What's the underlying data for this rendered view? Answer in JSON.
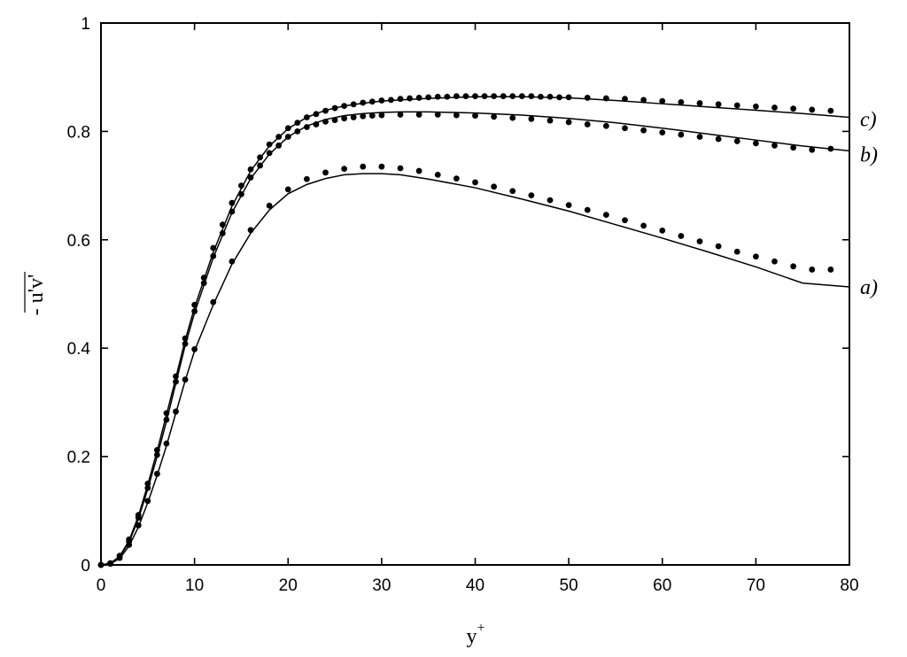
{
  "chart_data": {
    "type": "line",
    "title": "",
    "xlabel": "y",
    "xlabel_superscript": "+",
    "ylabel": "- u'v'",
    "xlim": [
      0,
      80
    ],
    "ylim": [
      0,
      1
    ],
    "xticks": [
      0,
      10,
      20,
      30,
      40,
      50,
      60,
      70,
      80
    ],
    "yticks": [
      0,
      0.2,
      0.4,
      0.6,
      0.8,
      1
    ],
    "ytick_labels": [
      "0",
      "0.2",
      "0.4",
      "0.6",
      "0.8",
      "1"
    ],
    "grid": false,
    "series": [
      {
        "name": "a)",
        "line": {
          "x": [
            0,
            1,
            2,
            3,
            4,
            5,
            6,
            7,
            8,
            9,
            10,
            12,
            14,
            16,
            18,
            20,
            22,
            24,
            26,
            28,
            30,
            32,
            35,
            40,
            45,
            50,
            55,
            60,
            65,
            70,
            75,
            80
          ],
          "y": [
            0,
            0.002,
            0.012,
            0.035,
            0.07,
            0.115,
            0.165,
            0.22,
            0.28,
            0.34,
            0.395,
            0.48,
            0.555,
            0.612,
            0.655,
            0.685,
            0.702,
            0.713,
            0.72,
            0.722,
            0.722,
            0.72,
            0.712,
            0.696,
            0.675,
            0.653,
            0.628,
            0.603,
            0.577,
            0.55,
            0.52,
            0.513
          ]
        },
        "points": {
          "x": [
            0,
            1,
            2,
            3,
            4,
            5,
            6,
            7,
            8,
            9,
            10,
            12,
            14,
            16,
            18,
            20,
            22,
            24,
            26,
            28,
            30,
            32,
            34,
            36,
            38,
            40,
            42,
            44,
            46,
            48,
            50,
            52,
            54,
            56,
            58,
            60,
            62,
            64,
            66,
            68,
            70,
            72,
            74,
            76,
            78
          ],
          "y": [
            0,
            0.002,
            0.013,
            0.037,
            0.073,
            0.118,
            0.168,
            0.224,
            0.283,
            0.342,
            0.398,
            0.485,
            0.56,
            0.618,
            0.663,
            0.693,
            0.712,
            0.724,
            0.731,
            0.735,
            0.735,
            0.732,
            0.727,
            0.72,
            0.713,
            0.706,
            0.698,
            0.69,
            0.682,
            0.673,
            0.664,
            0.655,
            0.646,
            0.636,
            0.626,
            0.617,
            0.607,
            0.597,
            0.588,
            0.578,
            0.569,
            0.56,
            0.551,
            0.545,
            0.545
          ]
        }
      },
      {
        "name": "b)",
        "line": {
          "x": [
            0,
            1,
            2,
            3,
            4,
            5,
            6,
            7,
            8,
            9,
            10,
            12,
            14,
            16,
            18,
            20,
            22,
            24,
            26,
            28,
            30,
            32,
            35,
            40,
            45,
            50,
            55,
            60,
            65,
            70,
            75,
            80
          ],
          "y": [
            0,
            0.003,
            0.015,
            0.042,
            0.085,
            0.14,
            0.2,
            0.265,
            0.335,
            0.405,
            0.465,
            0.567,
            0.65,
            0.713,
            0.758,
            0.79,
            0.81,
            0.822,
            0.829,
            0.833,
            0.835,
            0.836,
            0.836,
            0.834,
            0.83,
            0.824,
            0.816,
            0.806,
            0.795,
            0.784,
            0.773,
            0.764
          ]
        },
        "points": {
          "x": [
            0,
            1,
            2,
            3,
            4,
            5,
            6,
            7,
            8,
            9,
            10,
            11,
            12,
            13,
            14,
            15,
            16,
            17,
            18,
            19,
            20,
            21,
            22,
            23,
            24,
            25,
            26,
            27,
            28,
            29,
            30,
            32,
            34,
            36,
            38,
            40,
            42,
            44,
            46,
            48,
            50,
            52,
            54,
            56,
            58,
            60,
            62,
            64,
            66,
            68,
            70,
            72,
            74,
            76,
            78
          ],
          "y": [
            0,
            0.003,
            0.016,
            0.043,
            0.087,
            0.142,
            0.203,
            0.268,
            0.338,
            0.408,
            0.468,
            0.52,
            0.57,
            0.612,
            0.652,
            0.684,
            0.715,
            0.737,
            0.76,
            0.774,
            0.79,
            0.8,
            0.808,
            0.813,
            0.818,
            0.821,
            0.824,
            0.826,
            0.828,
            0.829,
            0.83,
            0.831,
            0.831,
            0.831,
            0.83,
            0.829,
            0.827,
            0.825,
            0.823,
            0.82,
            0.817,
            0.813,
            0.81,
            0.806,
            0.802,
            0.798,
            0.794,
            0.79,
            0.786,
            0.782,
            0.778,
            0.774,
            0.77,
            0.766,
            0.768
          ]
        }
      },
      {
        "name": "c)",
        "line": {
          "x": [
            0,
            1,
            2,
            3,
            4,
            5,
            6,
            7,
            8,
            9,
            10,
            12,
            14,
            16,
            18,
            20,
            22,
            24,
            26,
            28,
            30,
            32,
            35,
            40,
            45,
            50,
            55,
            60,
            65,
            70,
            75,
            80
          ],
          "y": [
            0,
            0.003,
            0.016,
            0.045,
            0.09,
            0.148,
            0.21,
            0.277,
            0.345,
            0.415,
            0.475,
            0.577,
            0.662,
            0.727,
            0.773,
            0.805,
            0.826,
            0.839,
            0.847,
            0.852,
            0.856,
            0.858,
            0.861,
            0.864,
            0.864,
            0.862,
            0.857,
            0.851,
            0.845,
            0.839,
            0.833,
            0.826
          ]
        },
        "points": {
          "x": [
            0,
            1,
            2,
            3,
            4,
            5,
            6,
            7,
            8,
            9,
            10,
            11,
            12,
            13,
            14,
            15,
            16,
            17,
            18,
            19,
            20,
            21,
            22,
            23,
            24,
            25,
            26,
            27,
            28,
            29,
            30,
            31,
            32,
            33,
            34,
            35,
            36,
            37,
            38,
            39,
            40,
            41,
            42,
            43,
            44,
            45,
            46,
            47,
            48,
            49,
            50,
            52,
            54,
            56,
            58,
            60,
            62,
            64,
            66,
            68,
            70,
            72,
            74,
            76,
            78
          ],
          "y": [
            0,
            0.003,
            0.017,
            0.047,
            0.092,
            0.15,
            0.212,
            0.28,
            0.348,
            0.418,
            0.48,
            0.53,
            0.585,
            0.628,
            0.668,
            0.7,
            0.73,
            0.752,
            0.776,
            0.79,
            0.806,
            0.816,
            0.826,
            0.832,
            0.838,
            0.843,
            0.847,
            0.85,
            0.853,
            0.855,
            0.857,
            0.858,
            0.86,
            0.861,
            0.862,
            0.863,
            0.864,
            0.864,
            0.865,
            0.865,
            0.865,
            0.865,
            0.865,
            0.865,
            0.865,
            0.865,
            0.865,
            0.864,
            0.864,
            0.863,
            0.863,
            0.862,
            0.861,
            0.86,
            0.858,
            0.856,
            0.854,
            0.852,
            0.85,
            0.848,
            0.846,
            0.844,
            0.842,
            0.84,
            0.838
          ]
        }
      }
    ]
  }
}
